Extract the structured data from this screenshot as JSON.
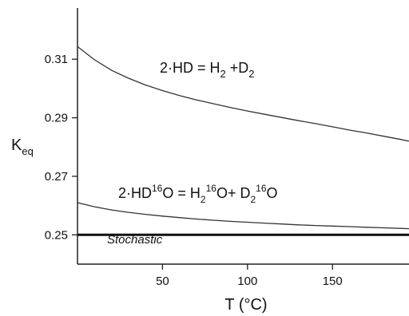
{
  "chart_data": {
    "type": "line",
    "title": "",
    "xlabel": "T (°C)",
    "ylabel": "K",
    "ylabel_sub": "eq",
    "xlim": [
      0,
      195
    ],
    "ylim": [
      0.24,
      0.3275
    ],
    "xticks": [
      50,
      100,
      150
    ],
    "yticks": [
      0.25,
      0.27,
      0.29,
      0.31
    ],
    "ytick_labels": [
      "0.25",
      "0.27",
      "0.29",
      "0.31"
    ],
    "xtick_labels": [
      "50",
      "100",
      "150"
    ],
    "grid": false,
    "series": [
      {
        "x": [
          0,
          10,
          20,
          30,
          40,
          50,
          60,
          70,
          80,
          90,
          100,
          110,
          120,
          130,
          140,
          150,
          160,
          170,
          180,
          190,
          195
        ],
        "values": [
          0.3143,
          0.3098,
          0.3062,
          0.3035,
          0.3012,
          0.2993,
          0.2976,
          0.2961,
          0.2948,
          0.2935,
          0.2923,
          0.2912,
          0.2901,
          0.289,
          0.288,
          0.2869,
          0.2858,
          0.2848,
          0.2837,
          0.2826,
          0.282
        ]
      },
      {
        "x": [
          0,
          10,
          20,
          30,
          40,
          50,
          60,
          70,
          80,
          90,
          100,
          110,
          120,
          130,
          140,
          150,
          160,
          170,
          180,
          190,
          195
        ],
        "values": [
          0.261,
          0.2596,
          0.2585,
          0.2577,
          0.257,
          0.2564,
          0.2559,
          0.2554,
          0.255,
          0.2546,
          0.2543,
          0.254,
          0.2537,
          0.2534,
          0.2532,
          0.253,
          0.2528,
          0.2526,
          0.2524,
          0.2522,
          0.2521
        ]
      },
      {
        "x": [
          0,
          195
        ],
        "values": [
          0.25,
          0.25
        ]
      }
    ],
    "annotations": {
      "hd": {
        "pre": "2·HD = H",
        "sub1": "2",
        "mid": " +D",
        "sub2": "2"
      },
      "hdo": {
        "pre": "2·HD",
        "sup1": "16",
        "mid1": "O = H",
        "sub1": "2",
        "sup2": "16",
        "mid2": "O+ D",
        "sub2": "2",
        "sup3": "16",
        "end": "O"
      },
      "stochastic": "Stochastic"
    }
  }
}
